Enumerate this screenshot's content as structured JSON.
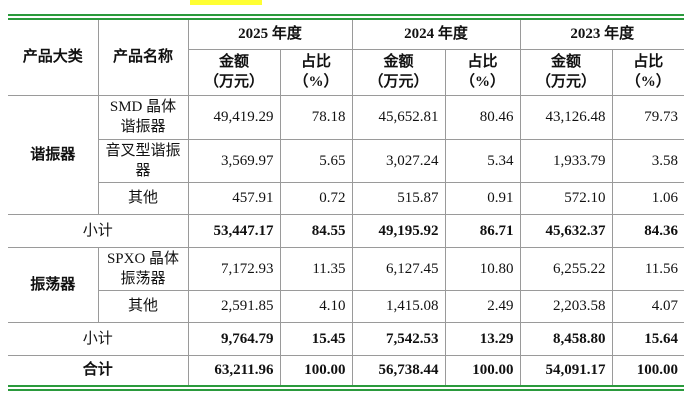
{
  "header": {
    "category": "产品大类",
    "product": "产品名称",
    "years": [
      "2025 年度",
      "2024 年度",
      "2023 年度"
    ],
    "amount": [
      "金额",
      "（万元）"
    ],
    "share": [
      "占比",
      "（%）"
    ]
  },
  "groups": [
    {
      "name": "谐振器",
      "items": [
        {
          "name": "SMD 晶体谐振器",
          "values": [
            "49,419.29",
            "78.18",
            "45,652.81",
            "80.46",
            "43,126.48",
            "79.73"
          ]
        },
        {
          "name": "音叉型谐振器",
          "values": [
            "3,569.97",
            "5.65",
            "3,027.24",
            "5.34",
            "1,933.79",
            "3.58"
          ]
        },
        {
          "name": "其他",
          "values": [
            "457.91",
            "0.72",
            "515.87",
            "0.91",
            "572.10",
            "1.06"
          ]
        }
      ],
      "subtotal": {
        "label": "小计",
        "values": [
          "53,447.17",
          "84.55",
          "49,195.92",
          "86.71",
          "45,632.37",
          "84.36"
        ]
      }
    },
    {
      "name": "振荡器",
      "items": [
        {
          "name": "SPXO 晶体振荡器",
          "values": [
            "7,172.93",
            "11.35",
            "6,127.45",
            "10.80",
            "6,255.22",
            "11.56"
          ]
        },
        {
          "name": "其他",
          "values": [
            "2,591.85",
            "4.10",
            "1,415.08",
            "2.49",
            "2,203.58",
            "4.07"
          ]
        }
      ],
      "subtotal": {
        "label": "小计",
        "values": [
          "9,764.79",
          "15.45",
          "7,542.53",
          "13.29",
          "8,458.80",
          "15.64"
        ]
      }
    }
  ],
  "total": {
    "label": "合计",
    "values": [
      "63,211.96",
      "100.00",
      "56,738.44",
      "100.00",
      "54,091.17",
      "100.00"
    ]
  }
}
